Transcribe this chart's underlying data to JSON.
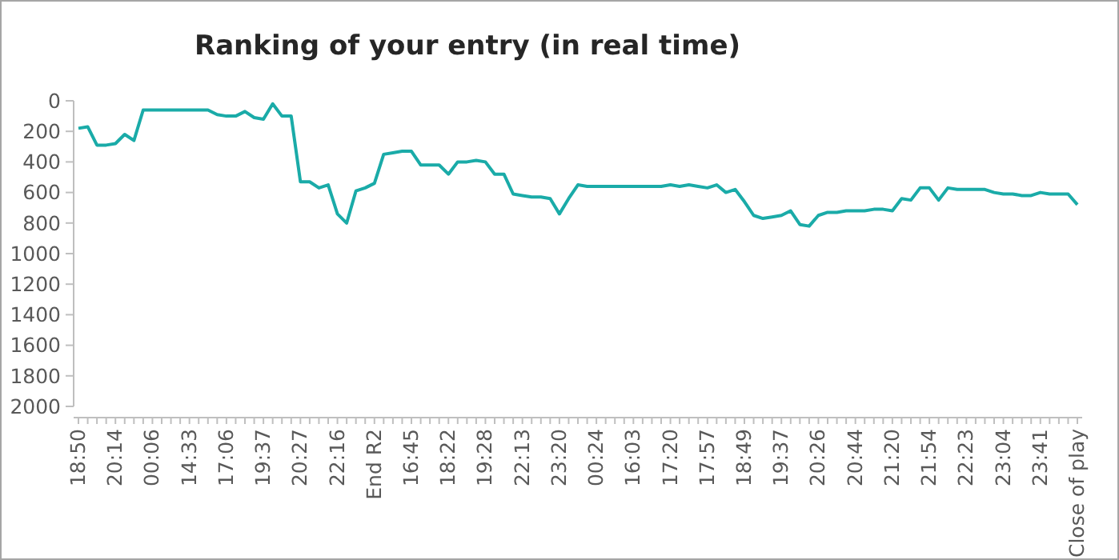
{
  "chart_data": {
    "type": "line",
    "title": "Ranking of your entry (in real time)",
    "categories": [
      "18:50",
      null,
      null,
      null,
      "20:14",
      null,
      null,
      null,
      "00:06",
      null,
      null,
      null,
      "14:33",
      null,
      null,
      null,
      "17:06",
      null,
      null,
      null,
      "19:37",
      null,
      null,
      null,
      "20:27",
      null,
      null,
      null,
      "22:16",
      null,
      null,
      null,
      "End R2",
      null,
      null,
      null,
      "16:45",
      null,
      null,
      null,
      "18:22",
      null,
      null,
      null,
      "19:28",
      null,
      null,
      null,
      "22:13",
      null,
      null,
      null,
      "23:20",
      null,
      null,
      null,
      "00:24",
      null,
      null,
      null,
      "16:03",
      null,
      null,
      null,
      "17:20",
      null,
      null,
      null,
      "17:57",
      null,
      null,
      null,
      "18:49",
      null,
      null,
      null,
      "19:37",
      null,
      null,
      null,
      "20:26",
      null,
      null,
      null,
      "20:44",
      null,
      null,
      null,
      "21:20",
      null,
      null,
      null,
      "21:54",
      null,
      null,
      null,
      "22:23",
      null,
      null,
      null,
      "23:04",
      null,
      null,
      null,
      "23:41",
      null,
      null,
      null,
      "Close of play"
    ],
    "series": [
      {
        "color": "#1aaba8",
        "values": [
          180,
          170,
          290,
          290,
          280,
          220,
          260,
          60,
          60,
          60,
          60,
          60,
          60,
          60,
          60,
          90,
          100,
          100,
          70,
          110,
          120,
          20,
          100,
          100,
          530,
          530,
          570,
          550,
          740,
          800,
          590,
          570,
          540,
          350,
          340,
          330,
          330,
          420,
          420,
          420,
          480,
          400,
          400,
          390,
          400,
          480,
          480,
          610,
          620,
          630,
          630,
          640,
          740,
          640,
          550,
          560,
          560,
          560,
          560,
          560,
          560,
          560,
          560,
          560,
          550,
          560,
          550,
          560,
          570,
          550,
          600,
          580,
          660,
          750,
          770,
          760,
          750,
          720,
          810,
          820,
          750,
          730,
          730,
          720,
          720,
          720,
          710,
          710,
          720,
          640,
          650,
          570,
          570,
          650,
          570,
          580,
          580,
          580,
          580,
          600,
          610,
          610,
          620,
          620,
          600,
          610,
          610,
          610,
          680
        ]
      }
    ],
    "ylim": [
      2000,
      0
    ],
    "yticks": [
      0,
      200,
      400,
      600,
      800,
      1000,
      1200,
      1400,
      1600,
      1800,
      2000
    ],
    "grid": false,
    "marker": "none",
    "line_style": "solid"
  }
}
